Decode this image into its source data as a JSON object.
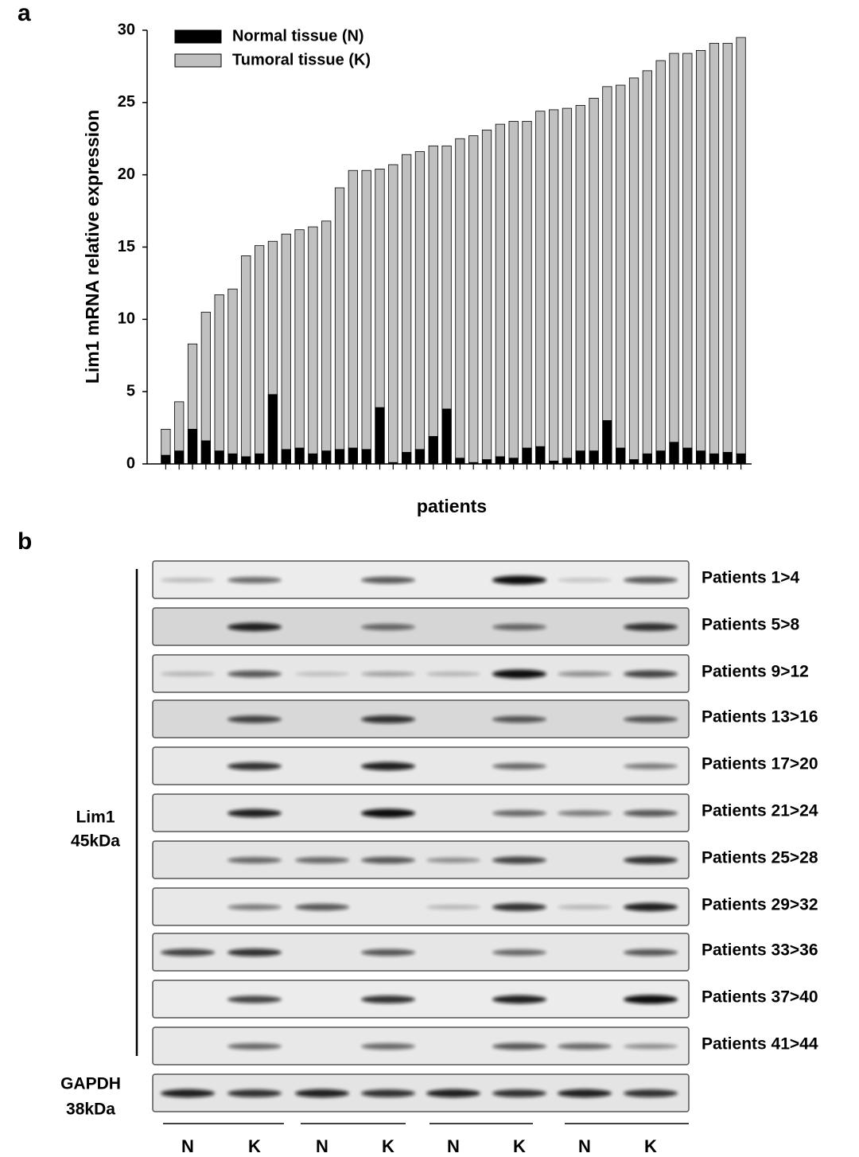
{
  "panel_labels": [
    "a",
    "b"
  ],
  "chart_data": {
    "type": "bar",
    "barmode": "overlay",
    "ylabel": "Lim1 mRNA relative expression",
    "xlabel": "patients",
    "categories": [
      null,
      null,
      null,
      null,
      null,
      null,
      null,
      null,
      null,
      null,
      null,
      null,
      null,
      null,
      null,
      null,
      null,
      null,
      null,
      null,
      null,
      null,
      null,
      null,
      null,
      null,
      null,
      null,
      null,
      null,
      null,
      null,
      null,
      null,
      null,
      null,
      null,
      null,
      null,
      null,
      null,
      null,
      null,
      null
    ],
    "series": [
      {
        "name": "Normal tissue (N)",
        "color": "#000000",
        "values": [
          0.6,
          0.9,
          2.4,
          1.6,
          0.9,
          0.7,
          0.5,
          0.7,
          4.8,
          1.0,
          1.1,
          0.7,
          0.9,
          1.0,
          1.1,
          1.0,
          3.9,
          0.1,
          0.8,
          1.0,
          1.9,
          3.8,
          0.4,
          0.1,
          0.3,
          0.5,
          0.4,
          1.1,
          1.2,
          0.2,
          0.4,
          0.9,
          0.9,
          3.0,
          1.1,
          0.3,
          0.7,
          0.9,
          1.5,
          1.1,
          0.9,
          0.7,
          0.8,
          0.7
        ]
      },
      {
        "name": "Tumoral tissue (K)",
        "color": "#c0c0c0",
        "values": [
          2.4,
          4.3,
          8.3,
          10.5,
          11.7,
          12.1,
          14.4,
          15.1,
          15.4,
          15.9,
          16.2,
          16.4,
          16.8,
          19.1,
          20.3,
          20.3,
          20.4,
          20.7,
          21.4,
          21.6,
          22.0,
          22.0,
          22.5,
          22.7,
          23.1,
          23.5,
          23.7,
          23.7,
          24.4,
          24.5,
          24.6,
          24.8,
          25.3,
          26.1,
          26.2,
          26.7,
          27.2,
          27.9,
          28.4,
          28.4,
          28.6,
          29.1,
          29.1,
          29.5
        ]
      }
    ],
    "ylim": [
      0,
      30
    ],
    "yticks": [
      0,
      5,
      10,
      15,
      20,
      25,
      30
    ],
    "grid": false,
    "legend": "upper left"
  },
  "blot": {
    "rows": [
      "Patients 1>4",
      "Patients 5>8",
      "Patients 9>12",
      "Patients 13>16",
      "Patients 17>20",
      "Patients 21>24",
      "Patients 25>28",
      "Patients 29>32",
      "Patients 33>36",
      "Patients 37>40",
      "Patients 41>44"
    ],
    "lim1_label": [
      "Lim1",
      "45kDa"
    ],
    "gapdh_label": [
      "GAPDH",
      "38kDa"
    ],
    "lanes": [
      "N",
      "K",
      "N",
      "K",
      "N",
      "K",
      "N",
      "K"
    ]
  }
}
